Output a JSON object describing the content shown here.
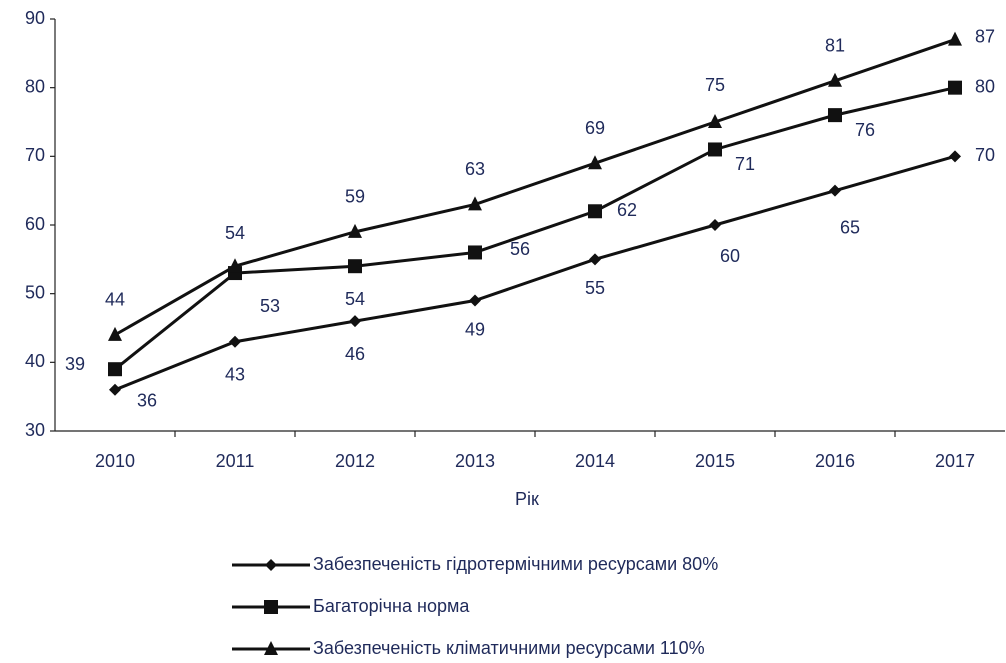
{
  "chart_data": {
    "type": "line",
    "x_label": "Рік",
    "categories": [
      "2010",
      "2011",
      "2012",
      "2013",
      "2014",
      "2015",
      "2016",
      "2017"
    ],
    "series": [
      {
        "name": "Забезпеченість гідротермічними ресурсами 80%",
        "color": "#111111",
        "marker": "diamond",
        "values": [
          36,
          43,
          46,
          49,
          55,
          60,
          65,
          70
        ]
      },
      {
        "name": "Багаторічна норма",
        "color": "#111111",
        "marker": "square",
        "values": [
          39,
          53,
          54,
          56,
          62,
          71,
          76,
          80
        ]
      },
      {
        "name": "Забезпеченість кліматичними ресурсами 110%",
        "color": "#111111",
        "marker": "triangle",
        "values": [
          44,
          54,
          59,
          63,
          69,
          75,
          81,
          87
        ]
      }
    ],
    "ylim": [
      30,
      90
    ],
    "yticks": [
      30,
      40,
      50,
      60,
      70,
      80,
      90
    ],
    "grid": false,
    "legend": "bottom"
  }
}
